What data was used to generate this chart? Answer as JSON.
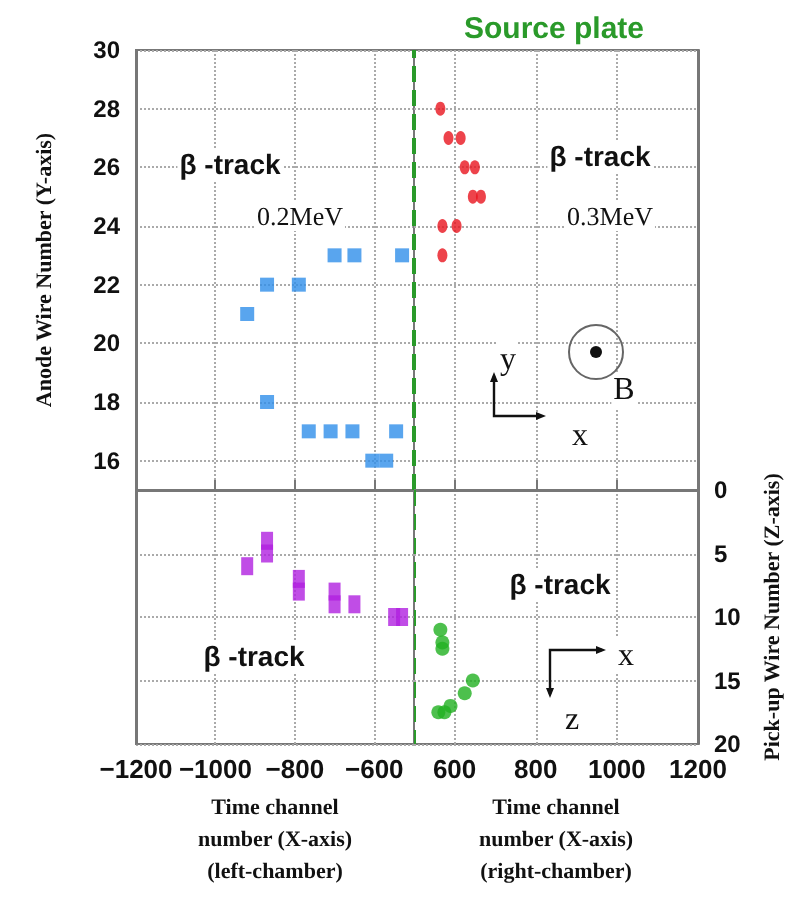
{
  "chart_data": [
    {
      "type": "scatter",
      "ylabel": "Anode Wire Number (Y-axis)",
      "annotations": [
        "β -track",
        "0.2MeV"
      ],
      "marker": "square",
      "color": "#2f8fea",
      "grid": true,
      "tick_labels": "y",
      "x": [
        -920,
        -870,
        -790,
        -700,
        -650,
        -530,
        -870,
        -765,
        -710,
        -655,
        -545,
        -605,
        -570
      ],
      "values": [
        21,
        22,
        22,
        23,
        23,
        23,
        18,
        17,
        17,
        17,
        17,
        16,
        16
      ],
      "xlim": [
        -1200,
        -500
      ],
      "xticks": [
        -1200,
        -1000,
        -800,
        -600
      ],
      "ylim": [
        15,
        30
      ],
      "yticks": [
        16,
        18,
        20,
        22,
        24,
        26,
        28,
        30
      ]
    },
    {
      "type": "scatter",
      "annotations": [
        "β -track",
        "0.3MeV",
        "B",
        "y",
        "x"
      ],
      "marker": "circle",
      "color": "#e8141e",
      "grid": true,
      "tick_labels": false,
      "x": [
        565,
        585,
        615,
        625,
        650,
        645,
        665,
        570,
        605,
        570
      ],
      "values": [
        28,
        27,
        27,
        26,
        26,
        25,
        25,
        24,
        24,
        23
      ],
      "xlim": [
        500,
        1200
      ],
      "xticks": [
        600,
        800,
        1000,
        1200
      ],
      "ylim": [
        15,
        30
      ],
      "yticks": [
        16,
        18,
        20,
        22,
        24,
        26,
        28,
        30
      ],
      "ref_lines": [
        {
          "axis": "x",
          "value": 500,
          "label": "Source plate",
          "color": "#2a9a2a",
          "line_style": "dashed"
        }
      ]
    },
    {
      "type": "scatter",
      "xlabel": "Time channel number (X-axis) (left-chamber)",
      "annotations": [
        "β -track"
      ],
      "marker": "square",
      "color": "#b020e0",
      "grid": true,
      "tick_labels": "x",
      "x": [
        -920,
        -870,
        -870,
        -790,
        -790,
        -700,
        -700,
        -650,
        -550,
        -530
      ],
      "values": [
        6,
        4,
        5,
        7,
        8,
        8,
        9,
        9,
        10,
        10
      ],
      "xlim": [
        -1200,
        -500
      ],
      "xticks": [
        -1200,
        -1000,
        -800,
        -600
      ],
      "ylim": [
        20,
        0
      ],
      "yticks": [
        0,
        5,
        10,
        15,
        20
      ]
    },
    {
      "type": "scatter",
      "xlabel": "Time channel number (X-axis) (right-chamber)",
      "ylabel": "Pick-up Wire Number (Z-axis)",
      "annotations": [
        "β -track",
        "x",
        "z"
      ],
      "marker": "circle",
      "color": "#20b020",
      "grid": true,
      "x": [
        565,
        570,
        570,
        645,
        625,
        590,
        560,
        575
      ],
      "values": [
        11,
        12,
        12.5,
        15,
        16,
        17,
        17.5,
        17.5
      ],
      "xlim": [
        500,
        1200
      ],
      "xticks": [
        600,
        800,
        1000,
        1200
      ],
      "ylim": [
        20,
        0
      ],
      "yticks": [
        0,
        5,
        10,
        15,
        20
      ],
      "ref_lines": [
        {
          "axis": "x",
          "value": 500,
          "label": null,
          "color": "#2a9a2a",
          "line_style": "dashed"
        }
      ]
    }
  ]
}
